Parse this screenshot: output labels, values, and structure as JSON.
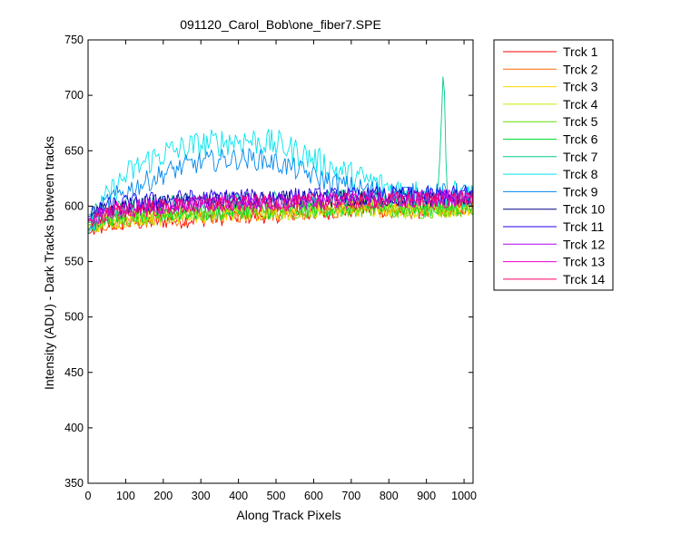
{
  "chart_data": {
    "type": "line",
    "title": "091120_Carol_Bob\\one_fiber7.SPE",
    "xlabel": "Along Track Pixels",
    "ylabel": "Intensity (ADU) - Dark Tracks between tracks",
    "xlim": [
      0,
      1024
    ],
    "ylim": [
      350,
      750
    ],
    "xticks": [
      0,
      100,
      200,
      300,
      400,
      500,
      600,
      700,
      800,
      900,
      1000
    ],
    "yticks": [
      350,
      400,
      450,
      500,
      550,
      600,
      650,
      700,
      750
    ],
    "grid": false,
    "legend_position": "outside-top-right",
    "x_step": 4,
    "series": [
      {
        "name": "Trck 1",
        "color": "#ff0000",
        "values": [
          575,
          583,
          585,
          586,
          587,
          588,
          589,
          590,
          591,
          592,
          593,
          594,
          595,
          596,
          597,
          598,
          597,
          596,
          597,
          598,
          599
        ]
      },
      {
        "name": "Trck 2",
        "color": "#ff6600",
        "values": [
          578,
          585,
          587,
          588,
          589,
          590,
          591,
          592,
          593,
          594,
          594,
          595,
          596,
          597,
          598,
          598,
          597,
          597,
          598,
          599,
          600
        ]
      },
      {
        "name": "Trck 3",
        "color": "#ffd700",
        "values": [
          580,
          586,
          588,
          589,
          590,
          591,
          592,
          593,
          594,
          594,
          595,
          596,
          596,
          597,
          598,
          598,
          597,
          596,
          597,
          598,
          599
        ]
      },
      {
        "name": "Trck 4",
        "color": "#ccee00",
        "values": [
          582,
          587,
          589,
          590,
          591,
          592,
          593,
          594,
          594,
          595,
          595,
          596,
          597,
          597,
          598,
          598,
          597,
          597,
          597,
          598,
          599
        ]
      },
      {
        "name": "Trck 5",
        "color": "#66dd00",
        "values": [
          583,
          588,
          590,
          591,
          592,
          593,
          593,
          594,
          595,
          595,
          596,
          596,
          597,
          597,
          598,
          598,
          597,
          596,
          597,
          598,
          598
        ]
      },
      {
        "name": "Trck 6",
        "color": "#00dd33",
        "values": [
          585,
          589,
          591,
          592,
          593,
          594,
          594,
          595,
          596,
          596,
          597,
          597,
          598,
          598,
          599,
          599,
          598,
          597,
          598,
          599,
          600
        ]
      },
      {
        "name": "Trck 7",
        "color": "#00cc88",
        "values": [
          592,
          598,
          600,
          601,
          602,
          603,
          603,
          604,
          605,
          605,
          606,
          606,
          607,
          607,
          607,
          607,
          608,
          607,
          608,
          608,
          609
        ],
        "spike": {
          "x": [
            930,
            935,
            940,
            944,
            948,
            952,
            956
          ],
          "y": [
            615,
            640,
            680,
            716,
            700,
            640,
            612
          ]
        }
      },
      {
        "name": "Trck 8",
        "color": "#00e5ee",
        "values": [
          575,
          608,
          628,
          640,
          648,
          652,
          656,
          658,
          660,
          658,
          655,
          648,
          640,
          632,
          626,
          620,
          615,
          612,
          610,
          610,
          610
        ]
      },
      {
        "name": "Trck 9",
        "color": "#0088ee",
        "values": [
          578,
          604,
          614,
          622,
          630,
          636,
          640,
          642,
          643,
          642,
          638,
          632,
          625,
          620,
          616,
          614,
          612,
          611,
          611,
          611,
          612
        ]
      },
      {
        "name": "Trck 10",
        "color": "#000088",
        "values": [
          588,
          598,
          600,
          602,
          603,
          604,
          604,
          605,
          605,
          606,
          606,
          606,
          606,
          607,
          607,
          607,
          607,
          607,
          607,
          608,
          608
        ]
      },
      {
        "name": "Trck 11",
        "color": "#2200ee",
        "values": [
          590,
          600,
          603,
          605,
          606,
          607,
          607,
          608,
          608,
          608,
          609,
          609,
          609,
          609,
          609,
          610,
          610,
          610,
          610,
          611,
          611
        ]
      },
      {
        "name": "Trck 12",
        "color": "#aa00ee",
        "values": [
          588,
          596,
          598,
          600,
          601,
          602,
          603,
          603,
          604,
          604,
          605,
          605,
          605,
          606,
          606,
          606,
          607,
          607,
          607,
          608,
          608
        ]
      },
      {
        "name": "Trck 13",
        "color": "#ee00cc",
        "values": [
          587,
          595,
          597,
          599,
          600,
          601,
          602,
          602,
          603,
          603,
          604,
          604,
          605,
          605,
          605,
          606,
          606,
          606,
          607,
          607,
          608
        ]
      },
      {
        "name": "Trck 14",
        "color": "#ff0066",
        "values": [
          586,
          594,
          596,
          598,
          599,
          600,
          601,
          601,
          602,
          602,
          603,
          603,
          604,
          604,
          604,
          605,
          605,
          605,
          606,
          606,
          607
        ]
      }
    ]
  }
}
